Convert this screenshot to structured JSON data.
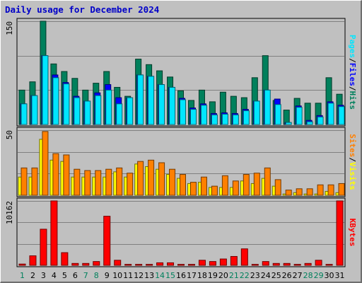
{
  "title": "Daily usage for December 2024",
  "colors": {
    "hits": "#00805c",
    "files": "#0000ff",
    "pages": "#00e6ff",
    "visits": "#ffff00",
    "sites": "#ff8000",
    "kbytes": "#ff0000",
    "weekend_label": "#00805c",
    "weekday_label": "#0000c8",
    "panel_bg": "#c0c0c0",
    "grid": "#808080"
  },
  "chart_data": [
    {
      "type": "bar",
      "name": "hits-files-pages",
      "categories": [
        "1",
        "2",
        "3",
        "4",
        "5",
        "6",
        "7",
        "8",
        "9",
        "10",
        "11",
        "12",
        "13",
        "14",
        "15",
        "16",
        "17",
        "18",
        "19",
        "20",
        "21",
        "22",
        "23",
        "24",
        "25",
        "26",
        "27",
        "28",
        "29",
        "30",
        "31"
      ],
      "weekend_days": [
        "1",
        "7",
        "8",
        "14",
        "15",
        "21",
        "22",
        "28",
        "29"
      ],
      "y_tick_label": "150",
      "ylim": [
        0,
        150
      ],
      "right_label": [
        "Pages",
        "/",
        "Files",
        "/",
        "Hits"
      ],
      "series": [
        {
          "name": "Hits",
          "values": [
            50,
            62,
            150,
            88,
            77,
            67,
            50,
            60,
            77,
            54,
            41,
            95,
            87,
            78,
            69,
            49,
            35,
            50,
            33,
            47,
            41,
            39,
            68,
            100,
            35,
            21,
            38,
            31,
            31,
            68,
            44
          ]
        },
        {
          "name": "Files",
          "values": [
            30,
            42,
            100,
            72,
            61,
            41,
            34,
            46,
            58,
            39,
            39,
            72,
            70,
            58,
            54,
            38,
            24,
            30,
            16,
            17,
            16,
            22,
            34,
            50,
            37,
            3,
            27,
            6,
            13,
            33,
            28
          ]
        },
        {
          "name": "Pages",
          "values": [
            30,
            42,
            100,
            68,
            59,
            39,
            34,
            42,
            50,
            30,
            39,
            72,
            70,
            58,
            54,
            36,
            22,
            28,
            14,
            15,
            14,
            20,
            34,
            50,
            29,
            3,
            25,
            4,
            11,
            31,
            26
          ]
        }
      ]
    },
    {
      "type": "bar",
      "name": "visits-sites",
      "categories": [
        "1",
        "2",
        "3",
        "4",
        "5",
        "6",
        "7",
        "8",
        "9",
        "10",
        "11",
        "12",
        "13",
        "14",
        "15",
        "16",
        "17",
        "18",
        "19",
        "20",
        "21",
        "22",
        "23",
        "24",
        "25",
        "26",
        "27",
        "28",
        "29",
        "30",
        "31"
      ],
      "y_tick_label": "50",
      "ylim": [
        0,
        50
      ],
      "right_label": [
        "Sites",
        "/",
        "Visits"
      ],
      "series": [
        {
          "name": "Visits",
          "values": [
            14,
            14,
            43,
            27,
            26,
            14,
            14,
            14,
            14,
            18,
            14,
            24,
            22,
            20,
            16,
            13,
            9,
            10,
            6,
            6,
            6,
            11,
            9,
            13,
            7,
            1,
            2,
            1,
            1,
            3,
            2
          ]
        },
        {
          "name": "Sites",
          "values": [
            21,
            21,
            49,
            32,
            31,
            20,
            19,
            19,
            20,
            21,
            17,
            26,
            27,
            25,
            20,
            16,
            10,
            14,
            7,
            15,
            11,
            16,
            17,
            21,
            12,
            4,
            5,
            5,
            8,
            8,
            9
          ]
        }
      ]
    },
    {
      "type": "bar",
      "name": "kbytes",
      "categories": [
        "1",
        "2",
        "3",
        "4",
        "5",
        "6",
        "7",
        "8",
        "9",
        "10",
        "11",
        "12",
        "13",
        "14",
        "15",
        "16",
        "17",
        "18",
        "19",
        "20",
        "21",
        "22",
        "23",
        "24",
        "25",
        "26",
        "27",
        "28",
        "29",
        "30",
        "31"
      ],
      "y_tick_label": "10162",
      "ylim": [
        0,
        10162
      ],
      "right_label": [
        "KBytes"
      ],
      "series": [
        {
          "name": "KBytes",
          "values": [
            200,
            1500,
            5700,
            10162,
            2000,
            300,
            300,
            600,
            7750,
            800,
            150,
            150,
            150,
            400,
            400,
            150,
            150,
            800,
            600,
            1000,
            1400,
            2600,
            150,
            600,
            300,
            300,
            150,
            300,
            800,
            150,
            10162
          ]
        }
      ]
    }
  ]
}
